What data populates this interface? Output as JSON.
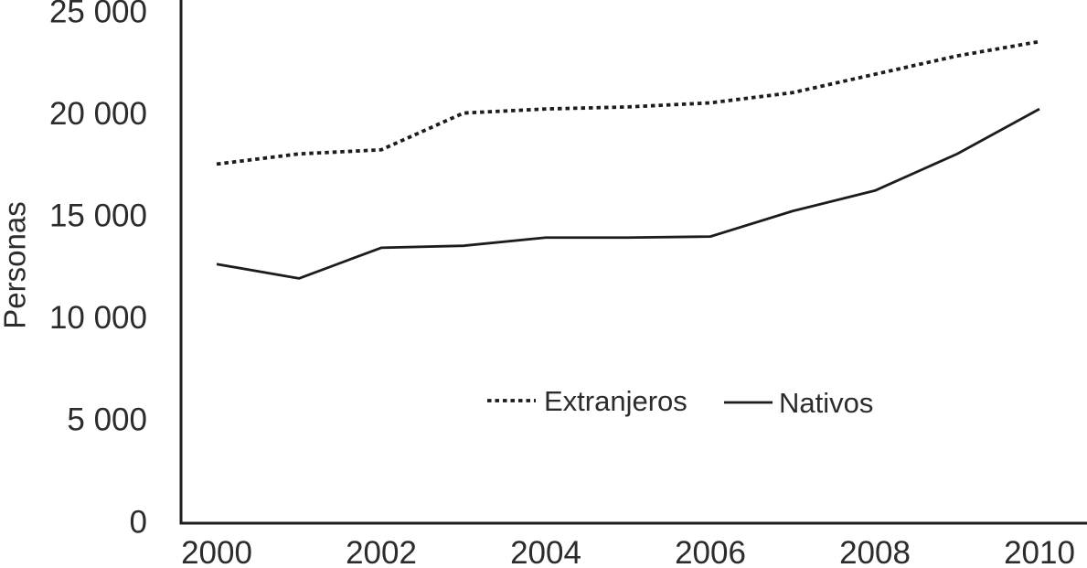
{
  "chart_data": {
    "type": "line",
    "title": "",
    "ylabel": "Personas",
    "xlabel": "",
    "x": [
      2000,
      2001,
      2002,
      2003,
      2004,
      2005,
      2006,
      2007,
      2008,
      2009,
      2010
    ],
    "series": [
      {
        "name": "Extranjeros",
        "line_style": "dotted",
        "values": [
          17500,
          18000,
          18200,
          20000,
          20200,
          20300,
          20500,
          21000,
          21900,
          22800,
          23500
        ]
      },
      {
        "name": "Nativos",
        "line_style": "solid",
        "values": [
          12600,
          11900,
          13400,
          13500,
          13900,
          13900,
          13950,
          15200,
          16200,
          18000,
          20200
        ]
      }
    ],
    "ylim": [
      0,
      25000
    ],
    "xlim": [
      2000,
      2010
    ],
    "y_ticks": [
      {
        "value": 0,
        "label": "0"
      },
      {
        "value": 5000,
        "label": "5 000"
      },
      {
        "value": 10000,
        "label": "10 000"
      },
      {
        "value": 15000,
        "label": "15 000"
      },
      {
        "value": 20000,
        "label": "20 000"
      },
      {
        "value": 25000,
        "label": "25 000"
      }
    ],
    "x_ticks": [
      {
        "value": 2000,
        "label": "2000"
      },
      {
        "value": 2002,
        "label": "2002"
      },
      {
        "value": 2004,
        "label": "2004"
      },
      {
        "value": 2006,
        "label": "2006"
      },
      {
        "value": 2008,
        "label": "2008"
      },
      {
        "value": 2010,
        "label": "2010"
      }
    ],
    "legend": {
      "position": "inside-center-lower",
      "items": [
        "Extranjeros",
        "Nativos"
      ]
    },
    "grid": false,
    "colors": {
      "line": "#1c1c1c",
      "text": "#2c2c2c",
      "background": "#ffffff"
    }
  }
}
